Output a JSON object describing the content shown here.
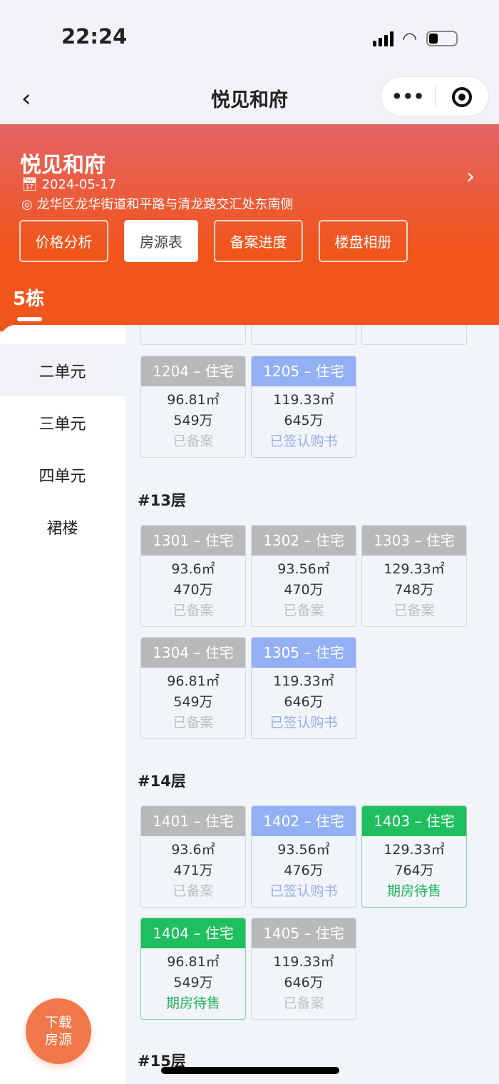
{
  "status_bar": {
    "time": "22:24"
  },
  "nav": {
    "title": "悦见和府",
    "more": "•••"
  },
  "header": {
    "title": "悦见和府",
    "date": "2024-05-17",
    "address": "龙华区龙华街道和平路与清龙路交汇处东南侧",
    "tabs": [
      {
        "label": "价格分析",
        "active": false
      },
      {
        "label": "房源表",
        "active": true
      },
      {
        "label": "备案进度",
        "active": false
      },
      {
        "label": "楼盘相册",
        "active": false
      }
    ],
    "building": "5栋"
  },
  "sidebar": {
    "items": [
      {
        "label": "二单元",
        "selected": true
      },
      {
        "label": "三单元"
      },
      {
        "label": "四单元"
      },
      {
        "label": "裙楼"
      }
    ]
  },
  "floors": [
    {
      "label": "",
      "units": [
        {
          "title": "1204 – 住宅",
          "area": "96.81㎡",
          "price": "549万",
          "status": "已备案",
          "state": "gray"
        },
        {
          "title": "1205 – 住宅",
          "area": "119.33㎡",
          "price": "645万",
          "status": "已签认购书",
          "state": "blue"
        }
      ]
    },
    {
      "label": "#13层",
      "units": [
        {
          "title": "1301 – 住宅",
          "area": "93.6㎡",
          "price": "470万",
          "status": "已备案",
          "state": "gray"
        },
        {
          "title": "1302 – 住宅",
          "area": "93.56㎡",
          "price": "470万",
          "status": "已备案",
          "state": "gray"
        },
        {
          "title": "1303 – 住宅",
          "area": "129.33㎡",
          "price": "748万",
          "status": "已备案",
          "state": "gray"
        },
        {
          "title": "1304 – 住宅",
          "area": "96.81㎡",
          "price": "549万",
          "status": "已备案",
          "state": "gray"
        },
        {
          "title": "1305 – 住宅",
          "area": "119.33㎡",
          "price": "646万",
          "status": "已签认购书",
          "state": "blue"
        }
      ]
    },
    {
      "label": "#14层",
      "units": [
        {
          "title": "1401 – 住宅",
          "area": "93.6㎡",
          "price": "471万",
          "status": "已备案",
          "state": "gray"
        },
        {
          "title": "1402 – 住宅",
          "area": "93.56㎡",
          "price": "476万",
          "status": "已签认购书",
          "state": "blue"
        },
        {
          "title": "1403 – 住宅",
          "area": "129.33㎡",
          "price": "764万",
          "status": "期房待售",
          "state": "green"
        },
        {
          "title": "1404 – 住宅",
          "area": "96.81㎡",
          "price": "549万",
          "status": "期房待售",
          "state": "green"
        },
        {
          "title": "1405 – 住宅",
          "area": "119.33㎡",
          "price": "646万",
          "status": "已备案",
          "state": "gray"
        }
      ]
    },
    {
      "label": "#15层",
      "units": []
    }
  ],
  "download_button": {
    "line1": "下载",
    "line2": "房源"
  },
  "colors": {
    "header_top": "#e46465",
    "header_bottom": "#f0551c",
    "sold_gray": "#b9b9b9",
    "signed_blue": "#93b0f4",
    "for_sale_green": "#1fbe5e",
    "download": "#f0784a"
  }
}
